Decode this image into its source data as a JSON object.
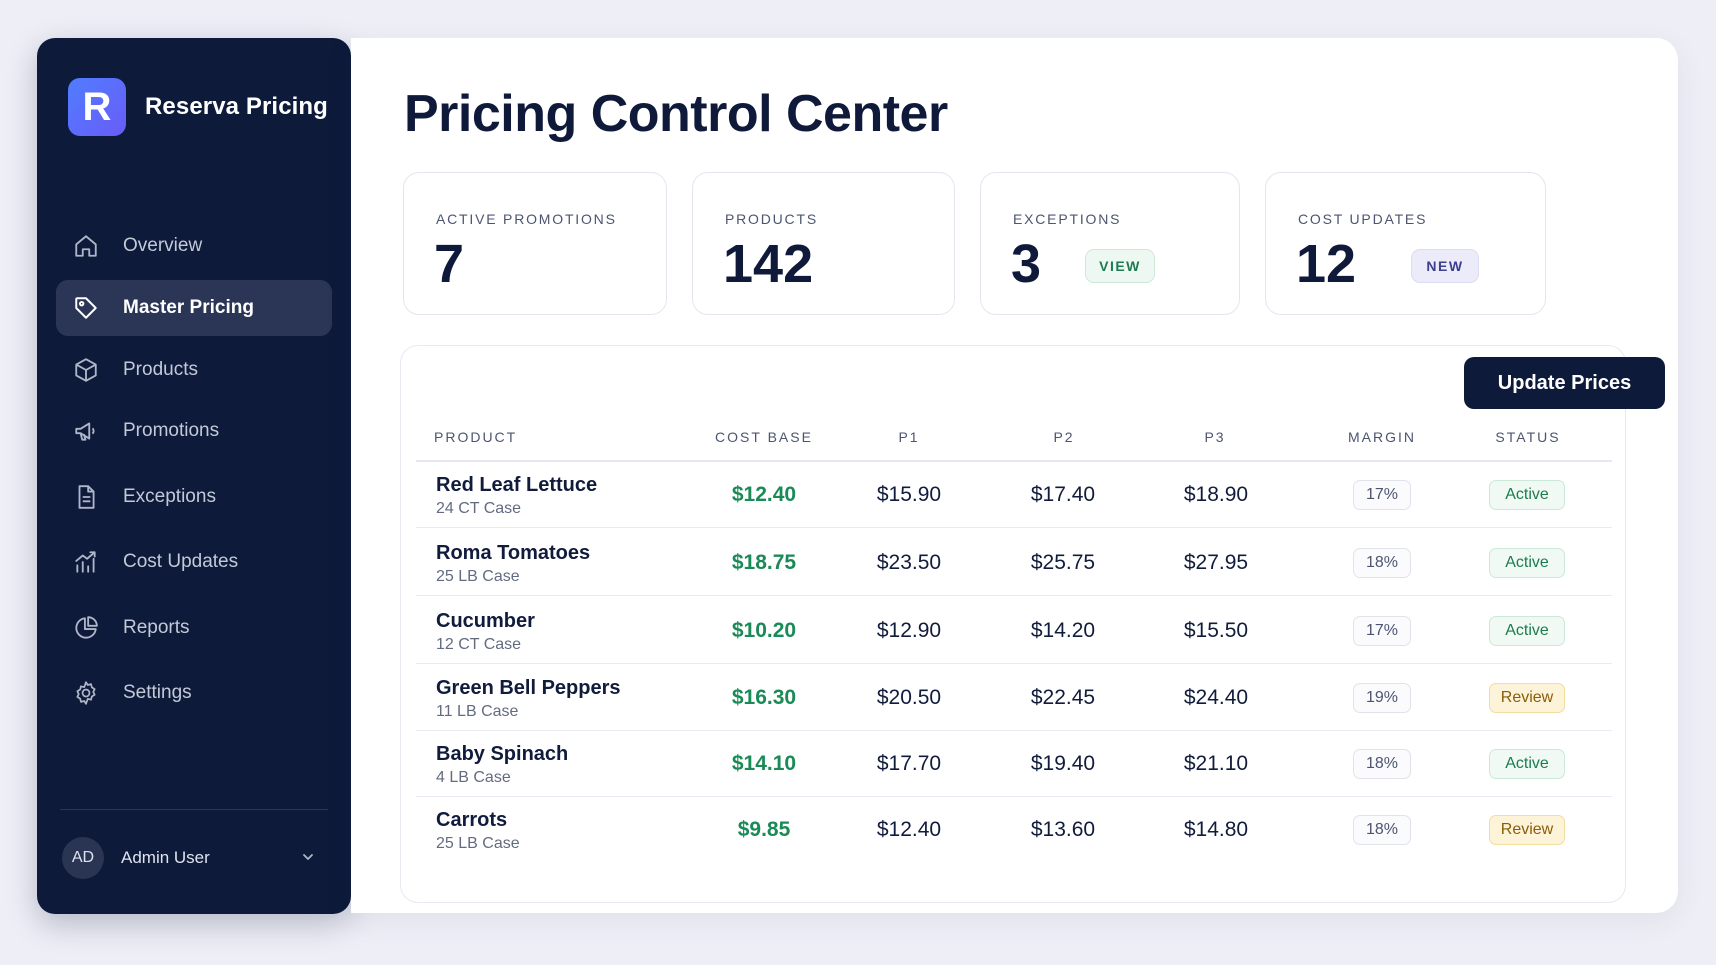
{
  "app": {
    "brand_initial": "R",
    "brand_name": "Reserva Pricing"
  },
  "sidebar": {
    "items": [
      {
        "label": "Overview",
        "icon": "home-icon",
        "active": false
      },
      {
        "label": "Master Pricing",
        "icon": "tag-icon",
        "active": true
      },
      {
        "label": "Products",
        "icon": "box-icon",
        "active": false
      },
      {
        "label": "Promotions",
        "icon": "megaphone-icon",
        "active": false
      },
      {
        "label": "Exceptions",
        "icon": "document-icon",
        "active": false
      },
      {
        "label": "Cost Updates",
        "icon": "chart-up-icon",
        "active": false
      },
      {
        "label": "Reports",
        "icon": "pie-chart-icon",
        "active": false
      },
      {
        "label": "Settings",
        "icon": "gear-icon",
        "active": false
      }
    ],
    "user": {
      "initials": "AD",
      "name": "Admin User"
    }
  },
  "main": {
    "title": "Pricing Control Center",
    "stats": [
      {
        "label": "ACTIVE PROMOTIONS",
        "value": "7"
      },
      {
        "label": "PRODUCTS",
        "value": "142"
      },
      {
        "label": "EXCEPTIONS",
        "value": "3",
        "badge": "VIEW"
      },
      {
        "label": "COST UPDATES",
        "value": "12",
        "badge": "NEW"
      }
    ],
    "update_button": "Update Prices",
    "table": {
      "headers": {
        "product": "PRODUCT",
        "cost_base": "COST BASE",
        "p1": "P1",
        "p2": "P2",
        "p3": "P3",
        "margin": "MARGIN",
        "status": "STATUS"
      },
      "rows": [
        {
          "name": "Red Leaf Lettuce",
          "pack": "24 CT Case",
          "cost": "$12.40",
          "p1": "$15.90",
          "p2": "$17.40",
          "p3": "$18.90",
          "margin": "17%",
          "status": "Active"
        },
        {
          "name": "Roma Tomatoes",
          "pack": "25 LB Case",
          "cost": "$18.75",
          "p1": "$23.50",
          "p2": "$25.75",
          "p3": "$27.95",
          "margin": "18%",
          "status": "Active"
        },
        {
          "name": "Cucumber",
          "pack": "12 CT Case",
          "cost": "$10.20",
          "p1": "$12.90",
          "p2": "$14.20",
          "p3": "$15.50",
          "margin": "17%",
          "status": "Active"
        },
        {
          "name": "Green Bell Peppers",
          "pack": "11 LB Case",
          "cost": "$16.30",
          "p1": "$20.50",
          "p2": "$22.45",
          "p3": "$24.40",
          "margin": "19%",
          "status": "Review"
        },
        {
          "name": "Baby Spinach",
          "pack": "4 LB Case",
          "cost": "$14.10",
          "p1": "$17.70",
          "p2": "$19.40",
          "p3": "$21.10",
          "margin": "18%",
          "status": "Active"
        },
        {
          "name": "Carrots",
          "pack": "25 LB Case",
          "cost": "$9.85",
          "p1": "$12.40",
          "p2": "$13.60",
          "p3": "$14.80",
          "margin": "18%",
          "status": "Review"
        }
      ]
    }
  },
  "colors": {
    "sidebar_bg": "#0d1a3a",
    "active_nav_bg": "#2b3656",
    "brand_gradient_start": "#4f7dff",
    "brand_gradient_end": "#6a5cf7",
    "cost_green": "#1a8a57",
    "status_active": "#1c7c4e",
    "status_review": "#8a5d08"
  }
}
